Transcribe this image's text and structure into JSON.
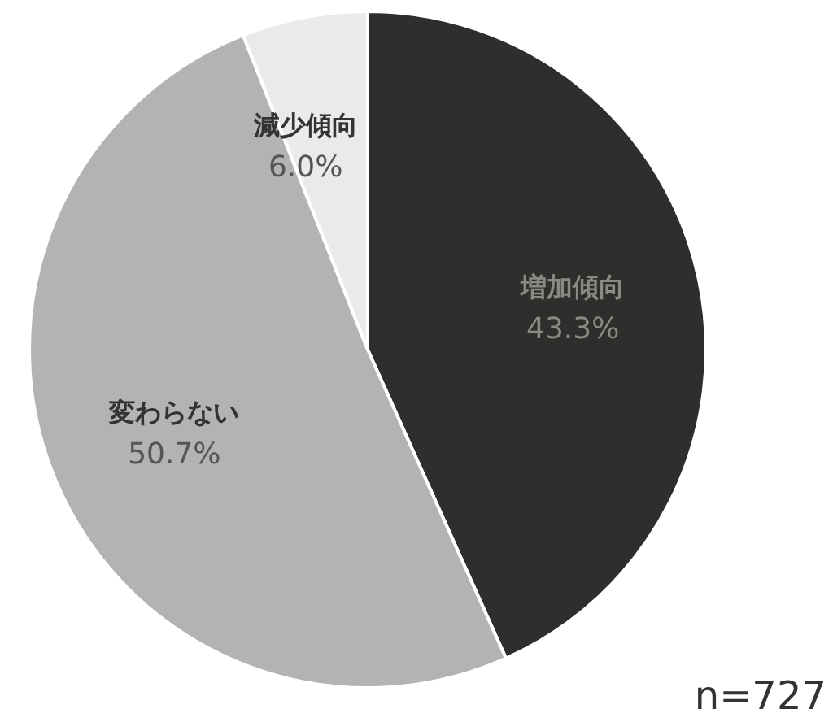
{
  "chart_data": {
    "type": "pie",
    "categories": [
      "増加傾向",
      "変わらない",
      "減少傾向"
    ],
    "values": [
      43.3,
      50.7,
      6.0
    ],
    "value_labels": [
      "43.3%",
      "50.7%",
      "6.0%"
    ],
    "colors": [
      "#2c2f2b",
      "#b3b3b3",
      "#e9ebeb"
    ],
    "annotations": [
      "n=727"
    ]
  }
}
